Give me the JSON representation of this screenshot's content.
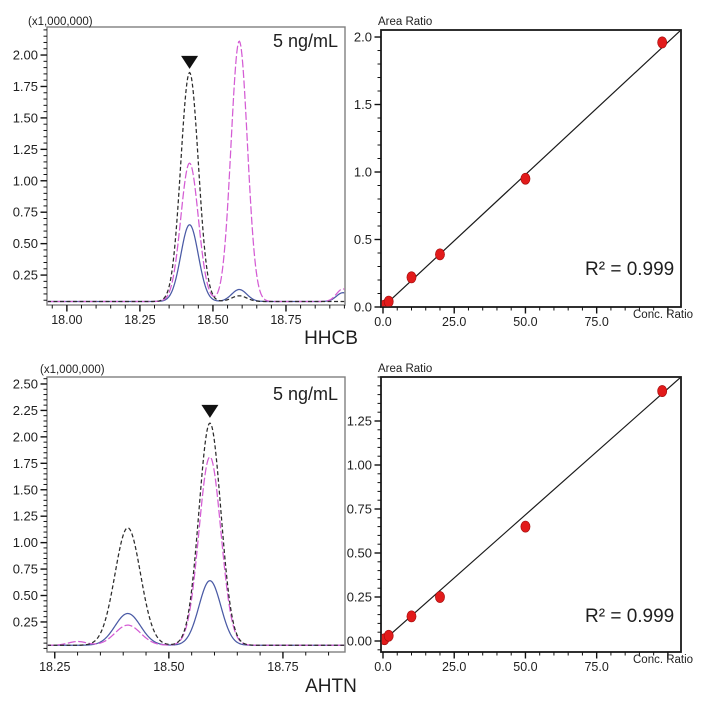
{
  "figure": {
    "captions": {
      "top": "HHCB",
      "bottom": "AHTN"
    },
    "colors": {
      "trace_black": "#2b2b2b",
      "trace_magenta": "#d45cd4",
      "trace_blue": "#4a5aa5",
      "cal_point": "#e21b1b",
      "cal_point_edge": "#9e0b0b",
      "cal_line": "#1a1a1a",
      "frame_chrom": "#7f7f7f",
      "frame_cal": "#1a1a1a",
      "tick": "#111111",
      "marker": "#111111"
    }
  },
  "chart_data": [
    {
      "id": "hhcb-chromatogram",
      "type": "line",
      "kind": "chromatogram",
      "title": "HHCB",
      "scale_label": "(x1,000,000)",
      "annotation": "5 ng/mL",
      "x_axis": {
        "range": [
          17.932,
          18.952
        ],
        "major_ticks": [
          18.0,
          18.25,
          18.5,
          18.75
        ],
        "tick_labels": [
          "18.00",
          "18.25",
          "18.50",
          "18.75"
        ],
        "minor_step": 0.05
      },
      "y_axis": {
        "range": [
          0.012,
          2.223
        ],
        "major_ticks": [
          0.25,
          0.5,
          0.75,
          1.0,
          1.25,
          1.5,
          1.75,
          2.0
        ],
        "tick_labels": [
          "0.25",
          "0.50",
          "0.75",
          "1.00",
          "1.25",
          "1.50",
          "1.75",
          "2.00"
        ],
        "minor_step": 0.05
      },
      "baseline": 0.04,
      "peak_marker": {
        "x": 18.42,
        "y": 1.89
      },
      "series": [
        {
          "name": "trace-blue",
          "color_key": "trace_blue",
          "dash": "",
          "peaks": [
            {
              "center": 18.42,
              "height": 0.61,
              "sigma": 0.03
            },
            {
              "center": 18.59,
              "height": 0.095,
              "sigma": 0.026
            },
            {
              "center": 18.945,
              "height": 0.07,
              "sigma": 0.022
            }
          ]
        },
        {
          "name": "trace-magenta",
          "color_key": "trace_magenta",
          "dash": "8 2.5",
          "peaks": [
            {
              "center": 18.42,
              "height": 1.1,
              "sigma": 0.03
            },
            {
              "center": 18.59,
              "height": 2.07,
              "sigma": 0.028
            },
            {
              "center": 18.945,
              "height": 0.1,
              "sigma": 0.022
            }
          ]
        },
        {
          "name": "trace-black",
          "color_key": "trace_black",
          "dash": "4 2.5",
          "peaks": [
            {
              "center": 18.42,
              "height": 1.82,
              "sigma": 0.03
            },
            {
              "center": 18.59,
              "height": 0.045,
              "sigma": 0.026
            }
          ]
        }
      ]
    },
    {
      "id": "hhcb-calibration",
      "type": "scatter",
      "kind": "calibration",
      "title": "HHCB calibration",
      "y_axis_title": "Area Ratio",
      "x_axis_title": "Conc. Ratio",
      "r2_label": "R² = 0.999",
      "x_axis": {
        "range": [
          -0.7,
          104.6
        ],
        "major_ticks": [
          0,
          25,
          50,
          75,
          100
        ],
        "tick_labels": [
          "0.0",
          "25.0",
          "50.0",
          "75.0",
          ""
        ],
        "minor_step": 5
      },
      "y_axis": {
        "range": [
          0,
          2.052
        ],
        "major_ticks": [
          0.0,
          0.5,
          1.0,
          1.5,
          2.0
        ],
        "tick_labels": [
          "0.0",
          "0.5",
          "1.0",
          "1.5",
          "2.0"
        ],
        "minor_step": 0.1
      },
      "fit_line": {
        "x1": 0,
        "y1": 0,
        "x2": 104.6,
        "y2": 2.052
      },
      "points": [
        [
          0.5,
          0.01
        ],
        [
          2,
          0.04
        ],
        [
          10,
          0.22
        ],
        [
          20,
          0.39
        ],
        [
          50,
          0.95
        ],
        [
          98,
          1.96
        ]
      ]
    },
    {
      "id": "ahtn-chromatogram",
      "type": "line",
      "kind": "chromatogram",
      "title": "AHTN",
      "scale_label": "(x1,000,000)",
      "annotation": "5 ng/mL",
      "x_axis": {
        "range": [
          18.233,
          18.886
        ],
        "major_ticks": [
          18.25,
          18.5,
          18.75
        ],
        "tick_labels": [
          "18.25",
          "18.50",
          "18.75"
        ],
        "minor_step": 0.05
      },
      "y_axis": {
        "range": [
          -0.034,
          2.566
        ],
        "major_ticks": [
          0.25,
          0.5,
          0.75,
          1.0,
          1.25,
          1.5,
          1.75,
          2.0,
          2.25,
          2.5
        ],
        "tick_labels": [
          "0.25",
          "0.50",
          "0.75",
          "1.00",
          "1.25",
          "1.50",
          "1.75",
          "2.00",
          "2.25",
          "2.50"
        ],
        "minor_step": 0.05
      },
      "baseline": 0.03,
      "peak_marker": {
        "x": 18.59,
        "y": 2.18
      },
      "series": [
        {
          "name": "trace-blue",
          "color_key": "trace_blue",
          "dash": "",
          "peaks": [
            {
              "center": 18.41,
              "height": 0.3,
              "sigma": 0.028
            },
            {
              "center": 18.59,
              "height": 0.61,
              "sigma": 0.024
            }
          ]
        },
        {
          "name": "trace-magenta",
          "color_key": "trace_magenta",
          "dash": "8 2.5",
          "peaks": [
            {
              "center": 18.3,
              "height": 0.035,
              "sigma": 0.02
            },
            {
              "center": 18.41,
              "height": 0.19,
              "sigma": 0.028
            },
            {
              "center": 18.59,
              "height": 1.78,
              "sigma": 0.024
            }
          ]
        },
        {
          "name": "trace-black",
          "color_key": "trace_black",
          "dash": "4 2.5",
          "peaks": [
            {
              "center": 18.41,
              "height": 1.11,
              "sigma": 0.028
            },
            {
              "center": 18.59,
              "height": 2.1,
              "sigma": 0.024
            }
          ]
        }
      ]
    },
    {
      "id": "ahtn-calibration",
      "type": "scatter",
      "kind": "calibration",
      "title": "AHTN calibration",
      "y_axis_title": "Area Ratio",
      "x_axis_title": "Conc. Ratio",
      "r2_label": "R² = 0.999",
      "x_axis": {
        "range": [
          -0.7,
          104.6
        ],
        "major_ticks": [
          0,
          25,
          50,
          75,
          100
        ],
        "tick_labels": [
          "0.0",
          "25.0",
          "50.0",
          "75.0",
          ""
        ],
        "minor_step": 5
      },
      "y_axis": {
        "range": [
          -0.0625,
          1.5
        ],
        "major_ticks": [
          0.0,
          0.25,
          0.5,
          0.75,
          1.0,
          1.25
        ],
        "tick_labels": [
          "0.00",
          "0.25",
          "0.50",
          "0.75",
          "1.00",
          "1.25"
        ],
        "minor_step": 0.05
      },
      "fit_line": {
        "x1": 0,
        "y1": 0,
        "x2": 104.6,
        "y2": 1.5
      },
      "points": [
        [
          0.5,
          0.01
        ],
        [
          2,
          0.03
        ],
        [
          10,
          0.14
        ],
        [
          20,
          0.25
        ],
        [
          50,
          0.65
        ],
        [
          98,
          1.42
        ]
      ]
    }
  ]
}
